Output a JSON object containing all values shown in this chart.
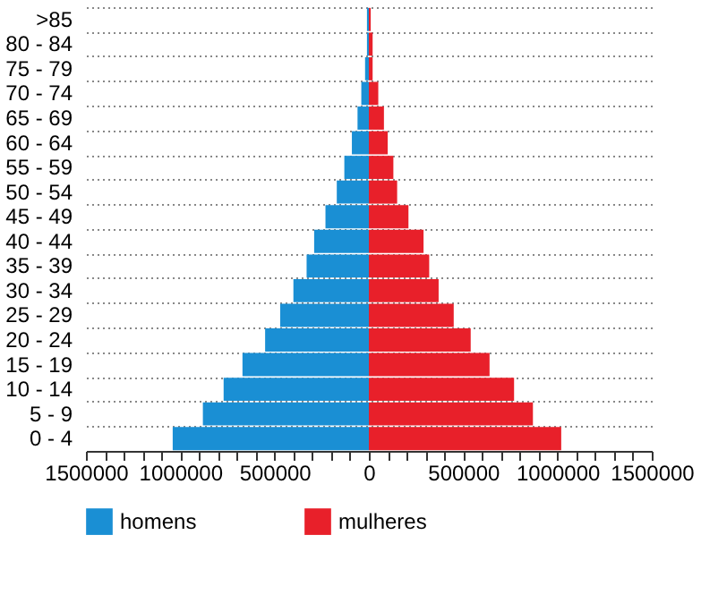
{
  "chart_data": {
    "type": "bar",
    "orientation": "horizontal",
    "categories": [
      ">85",
      "80 - 84",
      "75 - 79",
      "70 - 74",
      "65 - 69",
      "60 - 64",
      "55 - 59",
      "50 - 54",
      "45 - 49",
      "40 - 44",
      "35 - 39",
      "30 - 34",
      "25 - 29",
      "20 - 24",
      "15 - 19",
      "10 - 14",
      "5 - 9",
      "0 - 4"
    ],
    "series": [
      {
        "name": "homens",
        "color": "#1a8fd4",
        "values": [
          -10000,
          -10000,
          -20000,
          -40000,
          -60000,
          -90000,
          -130000,
          -170000,
          -230000,
          -290000,
          -330000,
          -400000,
          -470000,
          -550000,
          -670000,
          -770000,
          -880000,
          -1040000
        ]
      },
      {
        "name": "mulheres",
        "color": "#e8202a",
        "values": [
          10000,
          20000,
          20000,
          50000,
          80000,
          100000,
          130000,
          150000,
          210000,
          290000,
          320000,
          370000,
          450000,
          540000,
          640000,
          770000,
          870000,
          1020000
        ]
      }
    ],
    "xlim": [
      -1500000,
      1500000
    ],
    "xticks": [
      {
        "value": -1500000,
        "label": "1500000"
      },
      {
        "value": -1400000,
        "label": null
      },
      {
        "value": -1300000,
        "label": null
      },
      {
        "value": -1200000,
        "label": null
      },
      {
        "value": -1100000,
        "label": null
      },
      {
        "value": -1000000,
        "label": "1000000"
      },
      {
        "value": -900000,
        "label": null
      },
      {
        "value": -800000,
        "label": null
      },
      {
        "value": -700000,
        "label": null
      },
      {
        "value": -600000,
        "label": null
      },
      {
        "value": -500000,
        "label": "500000"
      },
      {
        "value": -400000,
        "label": null
      },
      {
        "value": -300000,
        "label": null
      },
      {
        "value": -200000,
        "label": null
      },
      {
        "value": -100000,
        "label": null
      },
      0,
      {
        "value": 100000,
        "label": null
      },
      {
        "value": 200000,
        "label": null
      },
      {
        "value": 300000,
        "label": null
      },
      {
        "value": 400000,
        "label": null
      },
      500000,
      {
        "value": 600000,
        "label": null
      },
      {
        "value": 700000,
        "label": null
      },
      {
        "value": 800000,
        "label": null
      },
      {
        "value": 900000,
        "label": null
      },
      1000000,
      {
        "value": 1100000,
        "label": null
      },
      {
        "value": 1200000,
        "label": null
      },
      {
        "value": 1300000,
        "label": null
      },
      {
        "value": 1400000,
        "label": null
      },
      1500000
    ],
    "stacked": true,
    "grid": "y",
    "legend": "bottom"
  }
}
